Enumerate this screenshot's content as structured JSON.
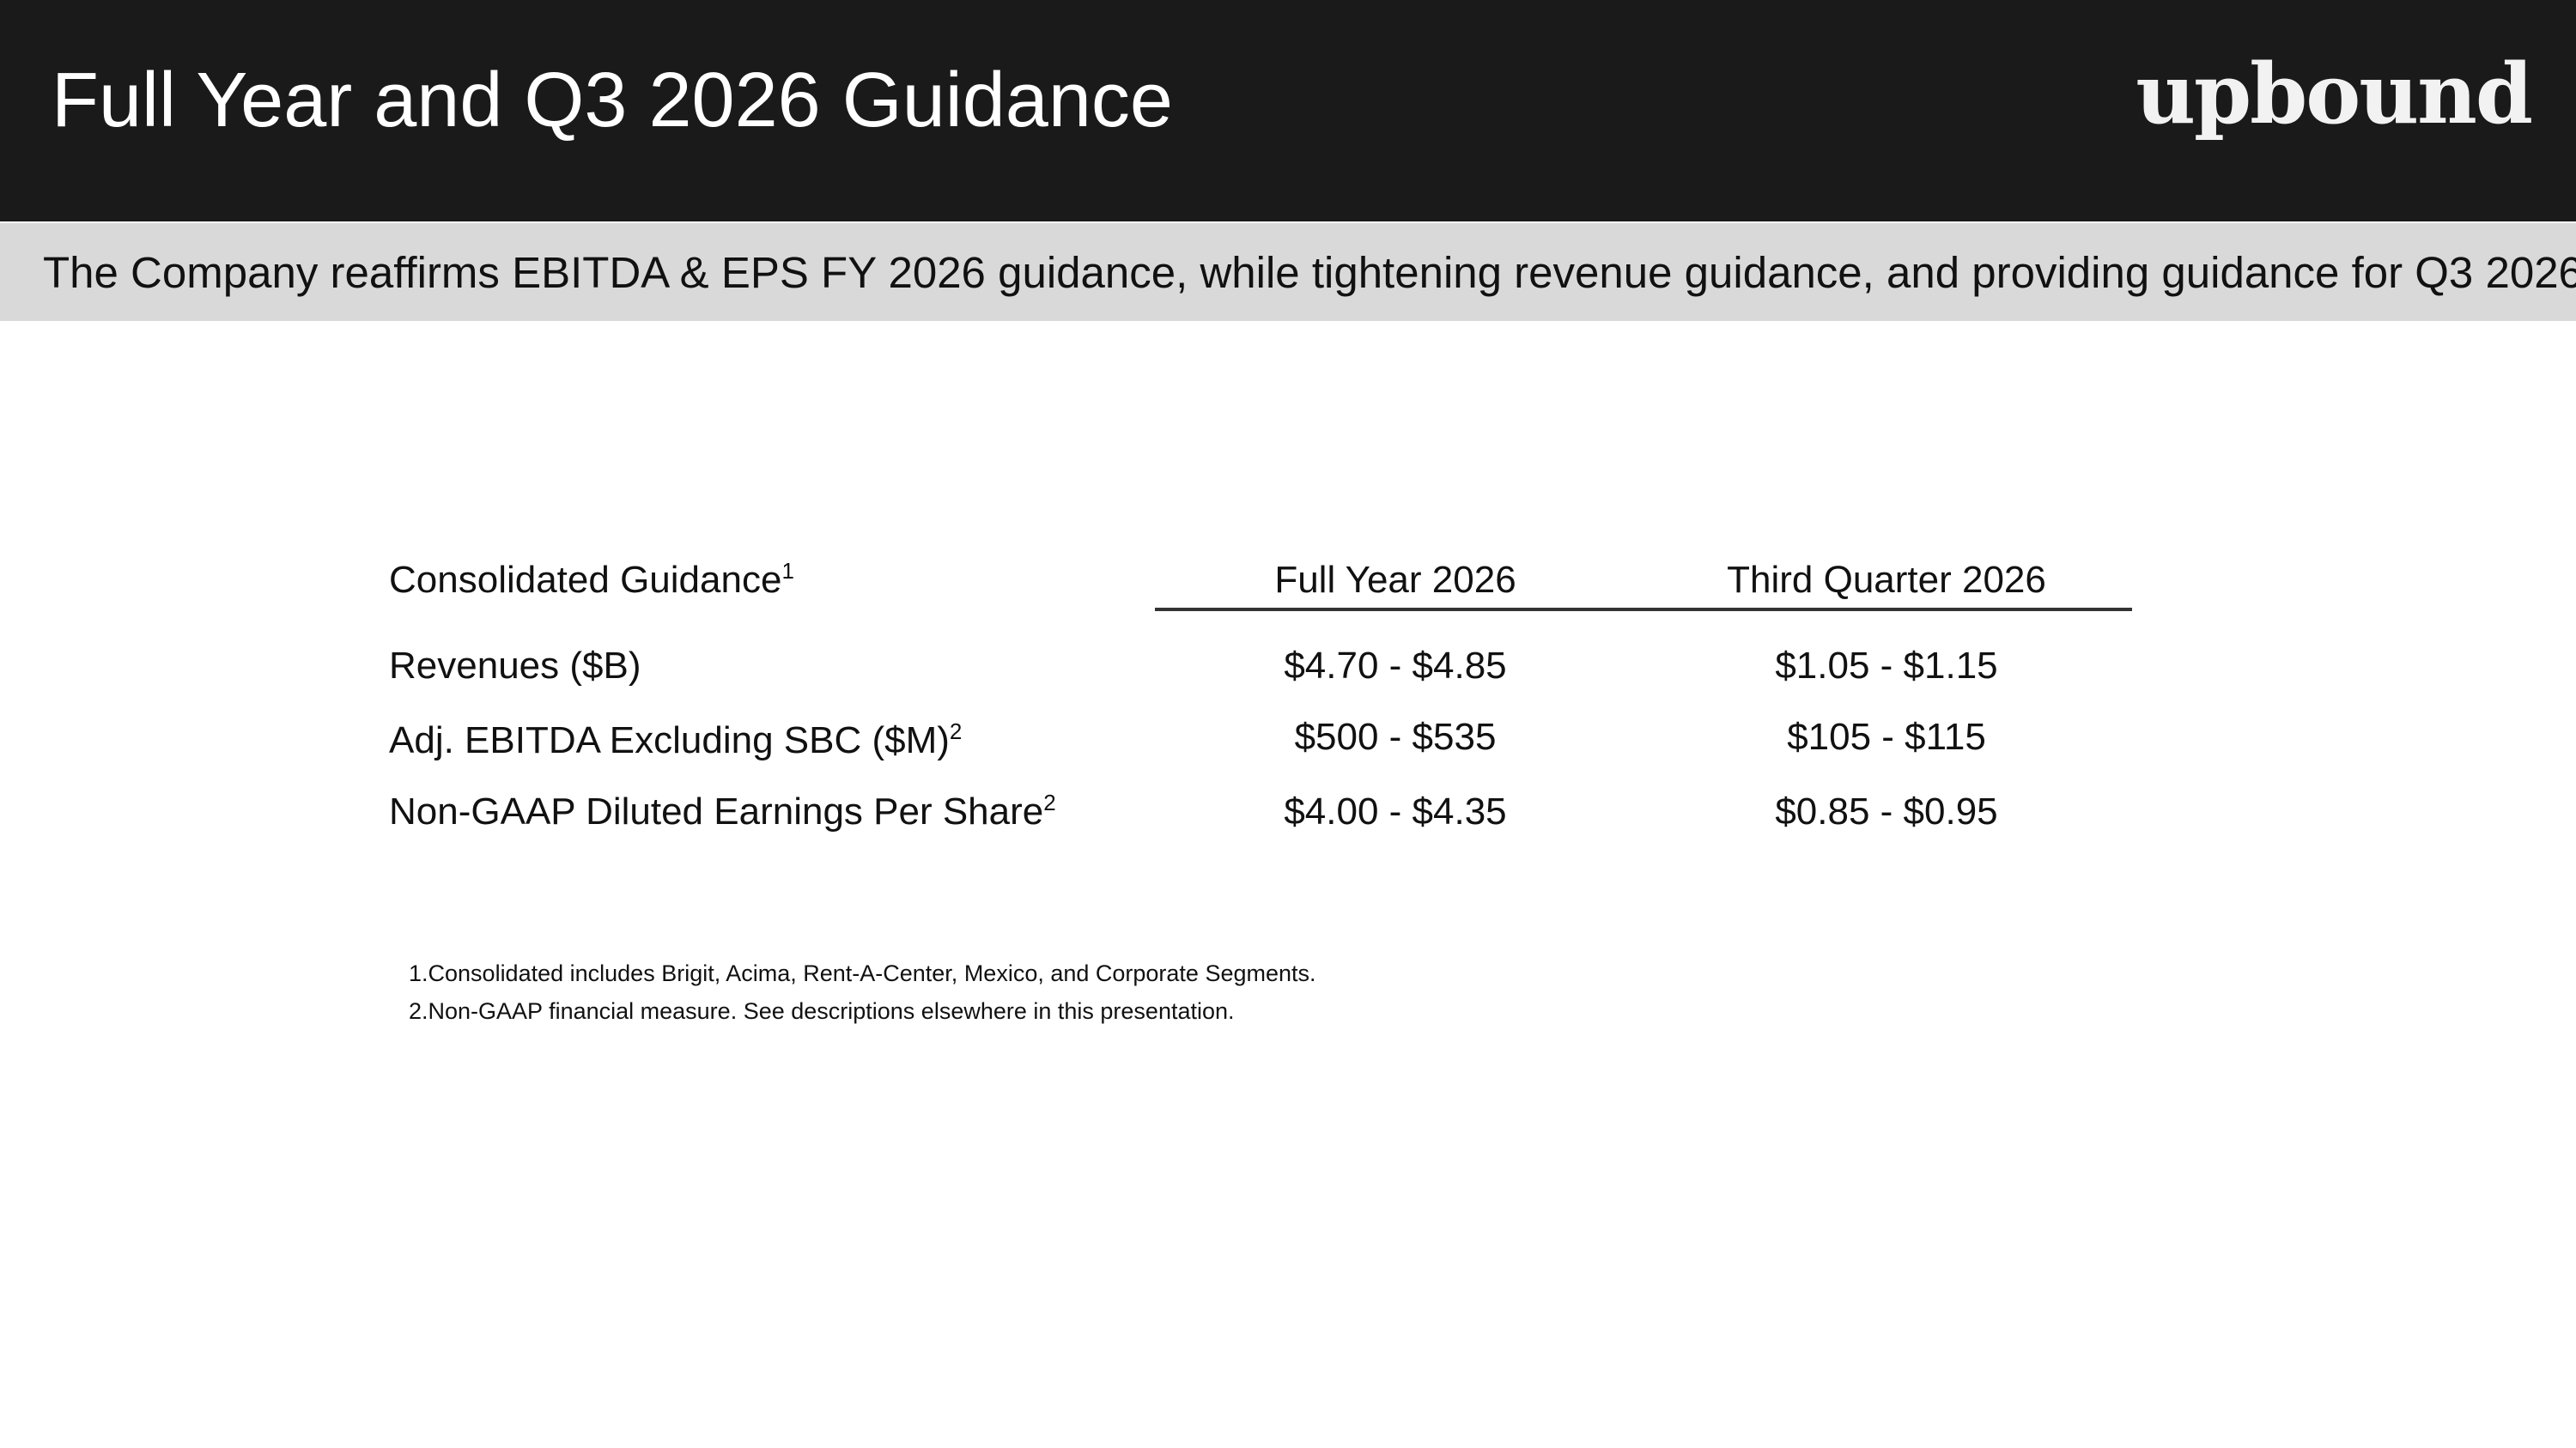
{
  "header": {
    "title": "Full Year and Q3 2026 Guidance",
    "logo_text": "upbound",
    "background_color": "#1a1a1a"
  },
  "subheader": {
    "text": "The Company reaffirms EBITDA & EPS FY 2026 guidance, while tightening revenue guidance, and providing guidance for Q3 2026",
    "background_color": "#d9d9d9"
  },
  "table": {
    "label_header": "Consolidated Guidance",
    "label_header_sup": "1",
    "columns": [
      "Full Year 2026",
      "Third Quarter 2026"
    ],
    "rows": [
      {
        "label": "Revenues ($B)",
        "sup": "",
        "full_year": "$4.70 - $4.85",
        "q3": "$1.05 - $1.15"
      },
      {
        "label": "Adj. EBITDA Excluding SBC ($M)",
        "sup": "2",
        "full_year": "$500 - $535",
        "q3": "$105 - $115"
      },
      {
        "label": "Non-GAAP Diluted Earnings Per Share",
        "sup": "2",
        "full_year": "$4.00 - $4.35",
        "q3": "$0.85 - $0.95"
      }
    ]
  },
  "footnotes": [
    "1.Consolidated includes Brigit, Acima, Rent-A-Center, Mexico, and Corporate Segments.",
    "2.Non-GAAP financial measure. See descriptions elsewhere in this presentation."
  ]
}
